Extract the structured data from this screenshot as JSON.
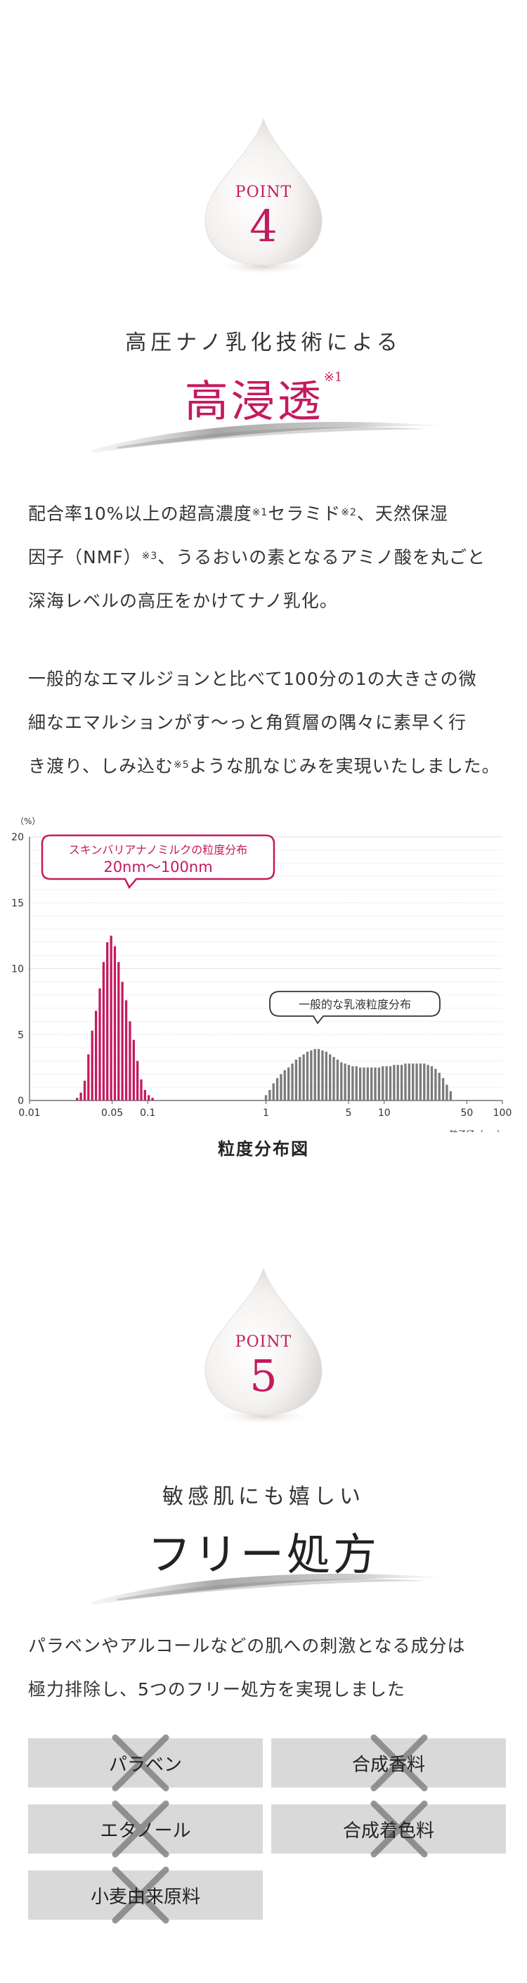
{
  "point4": {
    "point_word": "POINT",
    "point_num": "4",
    "subhead": "高圧ナノ乳化技術による",
    "title": "高浸透",
    "title_note": "※1",
    "para1": [
      {
        "t": "配合率10%以上の超高濃度",
        "sup": "※1",
        "t2": "セラミド",
        "sup2": "※2",
        "t3": "、天然保湿"
      },
      {
        "t": "因子（NMF）",
        "sup": "※3",
        "t2": "、うるおいの素となるアミノ酸を丸ごと",
        "sup2": "",
        "t3": ""
      },
      {
        "t": "深海レベルの高圧をかけてナノ乳化。",
        "sup": "",
        "t2": "",
        "sup2": "",
        "t3": ""
      }
    ],
    "para2": [
      {
        "t": "一般的なエマルジョンと比べて100分の1の大きさの微",
        "sup": "",
        "t2": ""
      },
      {
        "t": "細なエマルションがす〜っと角質層の隅々に素早く行",
        "sup": "",
        "t2": ""
      },
      {
        "t": "き渡り、しみ込む",
        "sup": "※5",
        "t2": "ような肌なじみを実現いたしました。"
      }
    ]
  },
  "chart_data": {
    "type": "bar",
    "title": "粒度分布図",
    "ylabel": "（%）",
    "xlabel": "粒子径（μm）",
    "x_scale": "log",
    "xlim": [
      0.01,
      100
    ],
    "ylim": [
      0,
      20
    ],
    "y_ticks": [
      0,
      5,
      10,
      15,
      20
    ],
    "x_ticks": [
      {
        "v": 0.01,
        "label": "0.01"
      },
      {
        "v": 0.05,
        "label": "0.05"
      },
      {
        "v": 0.1,
        "label": "0.1"
      },
      {
        "v": 1,
        "label": "1"
      },
      {
        "v": 5,
        "label": "5"
      },
      {
        "v": 10,
        "label": "10"
      },
      {
        "v": 50,
        "label": "50"
      },
      {
        "v": 100,
        "label": "100"
      }
    ],
    "zero_label": "0",
    "grid": true,
    "series": [
      {
        "name": "スキンバリアナノミルクの粒度分布",
        "annotation": "20nm〜100nm",
        "color": "#c41a5f",
        "x": [
          0.0253,
          0.0272,
          0.0293,
          0.0315,
          0.0339,
          0.0365,
          0.0393,
          0.0423,
          0.0455,
          0.049,
          0.0527,
          0.0567,
          0.061,
          0.0657,
          0.0707,
          0.0761,
          0.0819,
          0.0881,
          0.0948,
          0.102,
          0.1098
        ],
        "values": [
          0.2,
          0.6,
          1.5,
          3.5,
          5.3,
          6.8,
          8.5,
          10.5,
          12.0,
          12.5,
          11.7,
          10.5,
          9.0,
          7.6,
          6.0,
          4.6,
          3.0,
          1.6,
          0.8,
          0.4,
          0.2
        ]
      },
      {
        "name": "一般的な乳液粒度分布",
        "color": "#7a7a7a",
        "x": [
          1.0,
          1.076,
          1.158,
          1.246,
          1.341,
          1.443,
          1.553,
          1.672,
          1.799,
          1.936,
          2.083,
          2.242,
          2.413,
          2.597,
          2.794,
          3.007,
          3.236,
          3.483,
          3.748,
          4.034,
          4.341,
          4.671,
          5.027,
          5.41,
          5.822,
          6.266,
          6.743,
          7.257,
          7.81,
          8.405,
          9.045,
          9.734,
          10.475,
          11.273,
          12.132,
          13.056,
          14.05,
          15.121,
          16.272,
          17.512,
          18.846,
          20.281,
          21.826,
          23.489,
          25.278,
          27.204,
          29.276,
          31.506,
          33.906,
          36.489
        ],
        "values": [
          0.4,
          0.8,
          1.3,
          1.7,
          2.0,
          2.3,
          2.5,
          2.8,
          3.1,
          3.3,
          3.5,
          3.7,
          3.8,
          3.9,
          3.9,
          3.8,
          3.7,
          3.5,
          3.3,
          3.1,
          2.9,
          2.8,
          2.7,
          2.6,
          2.6,
          2.5,
          2.5,
          2.5,
          2.5,
          2.5,
          2.5,
          2.6,
          2.6,
          2.6,
          2.7,
          2.7,
          2.7,
          2.8,
          2.8,
          2.8,
          2.8,
          2.8,
          2.8,
          2.7,
          2.6,
          2.4,
          2.1,
          1.7,
          1.2,
          0.7
        ]
      }
    ]
  },
  "point5": {
    "point_word": "POINT",
    "point_num": "5",
    "subhead": "敏感肌にも嬉しい",
    "title": "フリー処方",
    "para": [
      "パラベンやアルコールなどの肌への刺激となる成分は",
      "極力排除し、5つのフリー処方を実現しました"
    ],
    "items": [
      {
        "label": "パラベン",
        "x_side": "left"
      },
      {
        "label": "合成香料",
        "x_side": "right"
      },
      {
        "label": "エタノール",
        "x_side": "left"
      },
      {
        "label": "合成着色料",
        "x_side": "right"
      },
      {
        "label": "小麦由来原料",
        "x_side": "left"
      }
    ]
  },
  "colors": {
    "accent": "#c41a5f",
    "gray_bar": "#7a7a7a",
    "item_bg": "#d9d9d9",
    "x_mark": "#7d7d7d"
  }
}
